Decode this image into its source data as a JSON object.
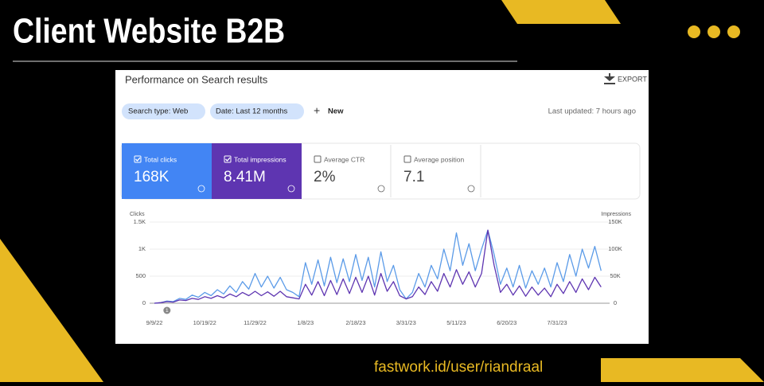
{
  "header": {
    "title": "Client Website B2B"
  },
  "panel": {
    "title": "Performance on Search results",
    "export": "EXPORT",
    "chips": [
      "Search type: Web",
      "Date: Last 12 months"
    ],
    "new": "New",
    "updated": "Last updated: 7 hours ago",
    "metrics": [
      {
        "label": "Total clicks",
        "value": "168K"
      },
      {
        "label": "Total impressions",
        "value": "8.41M"
      },
      {
        "label": "Average CTR",
        "value": "2%"
      },
      {
        "label": "Average position",
        "value": "7.1"
      }
    ]
  },
  "chart_data": {
    "type": "line",
    "ylabel": "Clicks",
    "y2label": "Impressions",
    "annotation": "1",
    "categories": [
      "9/9/22",
      null,
      null,
      null,
      null,
      null,
      null,
      null,
      "10/19/22",
      null,
      null,
      null,
      null,
      null,
      null,
      null,
      "11/29/22",
      null,
      null,
      null,
      null,
      null,
      null,
      null,
      "1/8/23",
      null,
      null,
      null,
      null,
      null,
      null,
      null,
      "2/18/23",
      null,
      null,
      null,
      null,
      null,
      null,
      null,
      "3/31/23",
      null,
      null,
      null,
      null,
      null,
      null,
      null,
      "5/11/23",
      null,
      null,
      null,
      null,
      null,
      null,
      null,
      "6/20/23",
      null,
      null,
      null,
      null,
      null,
      null,
      null,
      "7/31/23",
      null,
      null,
      null,
      null,
      null,
      null,
      null
    ],
    "ylim": [
      0,
      1500
    ],
    "yticks": [
      0,
      500,
      {
        "value": 1000,
        "label": "1K"
      },
      {
        "value": 1500,
        "label": "1.5K"
      }
    ],
    "y2lim": [
      0,
      150000
    ],
    "y2ticks": [
      0,
      {
        "value": 50000,
        "label": "50K"
      },
      {
        "value": 100000,
        "label": "100K"
      },
      {
        "value": 150000,
        "label": "150K"
      }
    ],
    "grid": true,
    "series": [
      {
        "name": "Clicks",
        "color": "#5b9be8",
        "values": [
          0,
          10,
          40,
          30,
          90,
          70,
          150,
          110,
          200,
          140,
          250,
          170,
          320,
          200,
          400,
          260,
          550,
          300,
          500,
          280,
          480,
          250,
          200,
          120,
          750,
          350,
          800,
          320,
          850,
          380,
          820,
          400,
          900,
          420,
          850,
          300,
          950,
          400,
          700,
          250,
          80,
          200,
          550,
          300,
          700,
          450,
          1000,
          600,
          1300,
          700,
          1100,
          600,
          1000,
          1350,
          900,
          350,
          650,
          300,
          700,
          280,
          600,
          350,
          650,
          300,
          750,
          400,
          900,
          500,
          1000,
          650,
          1050,
          600
        ]
      },
      {
        "name": "Impressions",
        "color": "#5e35b1",
        "axis": "y2",
        "values": [
          0,
          1000,
          3000,
          2000,
          6000,
          5000,
          9000,
          7000,
          12000,
          9000,
          14000,
          10000,
          17000,
          12000,
          20000,
          14000,
          22000,
          14000,
          21000,
          13000,
          22000,
          12000,
          10000,
          8000,
          35000,
          15000,
          40000,
          14000,
          42000,
          16000,
          45000,
          18000,
          48000,
          20000,
          50000,
          15000,
          55000,
          22000,
          40000,
          14000,
          8000,
          12000,
          30000,
          16000,
          40000,
          22000,
          55000,
          30000,
          62000,
          35000,
          58000,
          30000,
          55000,
          135000,
          70000,
          20000,
          35000,
          15000,
          32000,
          13000,
          30000,
          15000,
          28000,
          12000,
          35000,
          18000,
          40000,
          20000,
          45000,
          25000,
          48000,
          30000
        ]
      }
    ]
  },
  "footer": {
    "url": "fastwork.id/user/riandraal"
  }
}
